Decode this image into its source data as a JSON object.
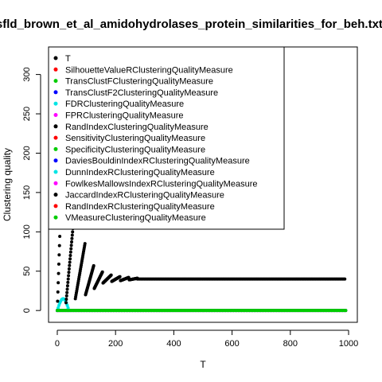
{
  "chart_data": {
    "type": "scatter",
    "title": "/sfld_brown_et_al_amidohydrolases_protein_similarities_for_beh.txt_",
    "xlabel": "T",
    "ylabel": "Clustering quality",
    "xlim": [
      -30,
      1030
    ],
    "ylim": [
      -15,
      335
    ],
    "xticks": [
      0,
      200,
      400,
      600,
      800,
      1000
    ],
    "yticks": [
      0,
      50,
      100,
      150,
      200,
      250,
      300
    ],
    "legend_position": "top-left",
    "series": [
      {
        "name": "T",
        "color": "#000000"
      },
      {
        "name": "SilhouetteValueRClusteringQualityMeasure",
        "color": "#ff0000"
      },
      {
        "name": "TransClustFClusteringQualityMeasure",
        "color": "#00cc00"
      },
      {
        "name": "TransClustF2ClusteringQualityMeasure",
        "color": "#0000ff"
      },
      {
        "name": "FDRClusteringQualityMeasure",
        "color": "#00e5e5"
      },
      {
        "name": "FPRClusteringQualityMeasure",
        "color": "#ff00ff"
      },
      {
        "name": "RandIndexClusteringQualityMeasure",
        "color": "#000000"
      },
      {
        "name": "SensitivityClusteringQualityMeasure",
        "color": "#ff0000"
      },
      {
        "name": "SpecificityClusteringQualityMeasure",
        "color": "#00cc00"
      },
      {
        "name": "DaviesBouldinIndexRClusteringQualityMeasure",
        "color": "#0000ff"
      },
      {
        "name": "DunnIndexRClusteringQualityMeasure",
        "color": "#00e5e5"
      },
      {
        "name": "FowlkesMallowsIndexRClusteringQualityMeasure",
        "color": "#ff00ff"
      },
      {
        "name": "JaccardIndexRClusteringQualityMeasure",
        "color": "#000000"
      },
      {
        "name": "RandIndexRClusteringQualityMeasure",
        "color": "#ff0000"
      },
      {
        "name": "VMeasureClusteringQualityMeasure",
        "color": "#00cc00"
      }
    ],
    "black_points": {
      "segments": [
        {
          "x": [
            0,
            30
          ],
          "y": [
            0,
            330
          ]
        },
        {
          "x": [
            30,
            60
          ],
          "y": [
            10,
            130
          ]
        },
        {
          "x": [
            62,
            95
          ],
          "y": [
            15,
            85
          ]
        },
        {
          "x": [
            97,
            125
          ],
          "y": [
            20,
            57
          ]
        },
        {
          "x": [
            127,
            155
          ],
          "y": [
            28,
            49
          ]
        },
        {
          "x": [
            157,
            185
          ],
          "y": [
            35,
            45
          ]
        },
        {
          "x": [
            187,
            215
          ],
          "y": [
            37,
            43
          ]
        },
        {
          "x": [
            217,
            245
          ],
          "y": [
            38,
            42
          ]
        },
        {
          "x": [
            247,
            275
          ],
          "y": [
            39,
            41
          ]
        }
      ],
      "plateau": {
        "x": [
          275,
          990
        ],
        "y": 40
      }
    },
    "baseline_points": {
      "x": [
        0,
        990
      ],
      "y": 0
    },
    "cyan_cluster": {
      "x": [
        0,
        40
      ],
      "y": [
        0,
        15
      ]
    }
  }
}
